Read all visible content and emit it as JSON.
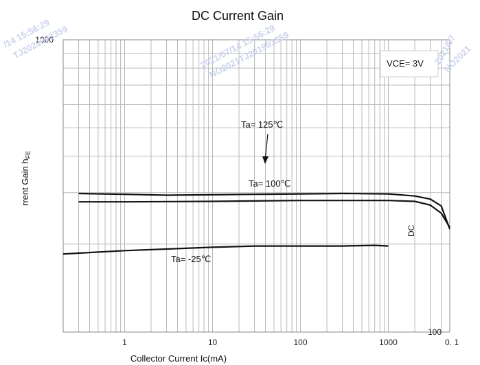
{
  "chart_data": {
    "type": "line",
    "title": "DC Current Gain",
    "xlabel": "Collector Current  Ic(mA)",
    "ylabel": "rrent Gain  h",
    "ylabel_subscript": "FE",
    "x_scale": "log",
    "y_scale": "log",
    "xlim": [
      0.2,
      5000
    ],
    "ylim": [
      100,
      1000
    ],
    "x_ticks": [
      "1",
      "10",
      "100",
      "1000"
    ],
    "y_ticks": [
      "1000",
      "100"
    ],
    "y_tick_values": [
      1000,
      100
    ],
    "grid": true,
    "condition_label": "VCE= 3V",
    "series": [
      {
        "name": "Ta= 125℃",
        "points": [
          [
            0.3,
            298
          ],
          [
            1,
            296
          ],
          [
            3,
            294
          ],
          [
            10,
            295
          ],
          [
            30,
            296
          ],
          [
            100,
            297
          ],
          [
            300,
            298
          ],
          [
            1000,
            297
          ],
          [
            2000,
            292
          ],
          [
            3000,
            285
          ],
          [
            4000,
            270
          ],
          [
            5000,
            225
          ]
        ]
      },
      {
        "name": "Ta= 100℃",
        "points": [
          [
            0.3,
            279
          ],
          [
            1,
            279
          ],
          [
            10,
            280
          ],
          [
            100,
            282
          ],
          [
            1000,
            282
          ],
          [
            2000,
            280
          ],
          [
            3000,
            272
          ],
          [
            4000,
            255
          ],
          [
            5000,
            228
          ]
        ]
      },
      {
        "name": "Ta= -25℃",
        "points": [
          [
            0.2,
            185
          ],
          [
            1,
            190
          ],
          [
            10,
            195
          ],
          [
            30,
            197
          ],
          [
            100,
            197
          ],
          [
            300,
            197
          ],
          [
            700,
            198
          ],
          [
            1000,
            197
          ]
        ]
      }
    ],
    "annotations": [
      {
        "text": "Ta= 125℃",
        "series_index": 0
      },
      {
        "text": "Ta= 100℃",
        "series_index": 1
      },
      {
        "text": "Ta= -25℃",
        "series_index": 2
      }
    ],
    "stray_labels": [
      "DC",
      "0. 1"
    ],
    "watermarks": [
      "/14  15:56:29",
      "TJ2020903359",
      "2021/07/14  15:56:29",
      "NO2021TJ201903359",
      "2021/07",
      "NO2021"
    ]
  }
}
